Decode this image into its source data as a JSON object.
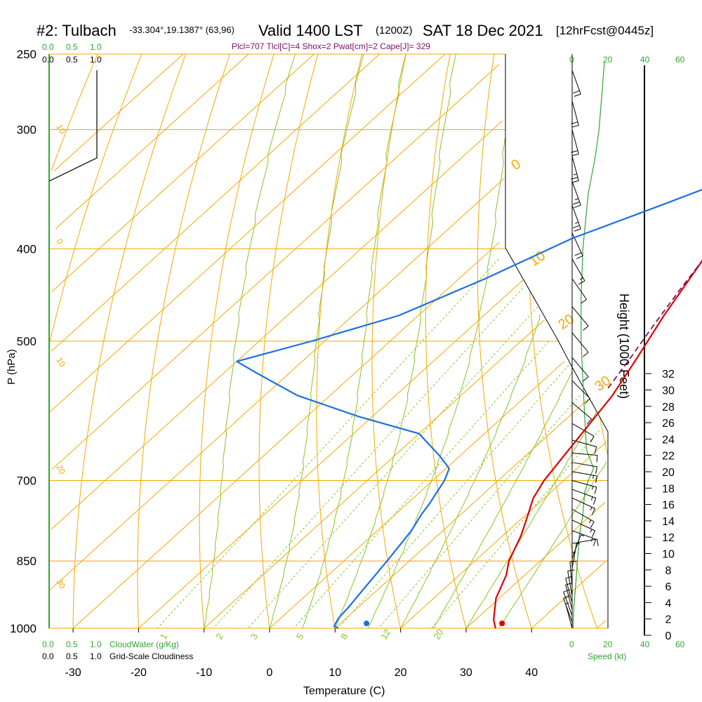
{
  "header": {
    "station": "#2: Tulbach",
    "coords": "-33.304°,19.1387° (63,96)",
    "valid": "Valid 1400 LST",
    "zulu": "(1200Z)",
    "date": "SAT 18 Dec 2021",
    "forecast": "[12hrFcst@0445z]",
    "params": "Plcl=707 Tlcl[C]=4 Shox=2 Pwat[cm]=2 Cape[J]= 329"
  },
  "colors": {
    "isobar": "#f2a900",
    "dry_adiabat": "#f2a900",
    "moist_adiabat": "#88c425",
    "mixing_ratio": "#88c425",
    "temperature": "#e00000",
    "dewpoint": "#1a6fe6",
    "parcel": "#7b1060",
    "cloud": "#2fa82f",
    "axis": "#000000"
  },
  "cloud_panel": {
    "cloudwater_ticks": [
      "0.0",
      "0.5",
      "1.0"
    ],
    "cloudiness_ticks": [
      "0.0",
      "0.5",
      "1.0"
    ],
    "cloudwater_label": "CloudWater (g/Kg)",
    "cloudiness_label": "Grid-Scale Cloudiness"
  },
  "speed_panel": {
    "ticks": [
      "0",
      "20",
      "40",
      "60"
    ],
    "label": "Speed (kt)"
  },
  "chart_data": {
    "type": "skew-t",
    "xlabel": "Temperature (C)",
    "ylabel": "P (hPa)",
    "y2label": "Height (1000 Feet)",
    "x_ticks": [
      "-30",
      "-20",
      "-10",
      "0",
      "10",
      "20",
      "30",
      "40"
    ],
    "x_tick_values": [
      -30,
      -20,
      -10,
      0,
      10,
      20,
      30,
      40
    ],
    "p_ticks": [
      "250",
      "300",
      "400",
      "500",
      "700",
      "850",
      "1000"
    ],
    "p_tick_values": [
      250,
      300,
      400,
      500,
      700,
      850,
      1000
    ],
    "height_ticks": [
      "0",
      "2",
      "4",
      "6",
      "8",
      "10",
      "12",
      "14",
      "16",
      "18",
      "20",
      "22",
      "24",
      "26",
      "28",
      "30",
      "32"
    ],
    "height_tick_values": [
      0,
      2,
      4,
      6,
      8,
      10,
      12,
      14,
      16,
      18,
      20,
      22,
      24,
      26,
      28,
      30,
      32
    ],
    "xlim": [
      -33,
      46
    ],
    "plim": [
      250,
      1000
    ],
    "dry_adiabat_labels": [
      "-10",
      "0",
      "10",
      "20",
      "30",
      "10",
      "0",
      "-10",
      "-20",
      "-30"
    ],
    "mixing_ratio_labels": [
      "1",
      "2",
      "3",
      "5",
      "8",
      "12",
      "20"
    ],
    "series": [
      {
        "name": "temperature",
        "points": [
          [
            34.5,
            1000
          ],
          [
            32.8,
            980
          ],
          [
            29.5,
            930
          ],
          [
            27.2,
            880
          ],
          [
            25.2,
            850
          ],
          [
            22.8,
            800
          ],
          [
            20.3,
            760
          ],
          [
            18.3,
            730
          ],
          [
            17.0,
            700
          ],
          [
            15.0,
            630
          ],
          [
            13.1,
            570
          ],
          [
            10.5,
            520
          ],
          [
            7.5,
            470
          ],
          [
            4.0,
            410
          ],
          [
            1.5,
            370
          ],
          [
            -0.8,
            330
          ],
          [
            -3.7,
            290
          ],
          [
            -6.6,
            260
          ]
        ]
      },
      {
        "name": "dewpoint",
        "points": [
          [
            10.5,
            1000
          ],
          [
            9.5,
            995
          ],
          [
            8.8,
            975
          ],
          [
            8.5,
            950
          ],
          [
            6.6,
            850
          ],
          [
            5.2,
            790
          ],
          [
            4.0,
            760
          ],
          [
            3.4,
            740
          ],
          [
            1.8,
            700
          ],
          [
            0.5,
            680
          ],
          [
            -3,
            660
          ],
          [
            -10,
            625
          ],
          [
            -22,
            600
          ],
          [
            -35,
            570
          ],
          [
            -45,
            540
          ],
          [
            -50,
            525
          ],
          [
            -42,
            500
          ],
          [
            -33,
            470
          ],
          [
            -26,
            430
          ],
          [
            -19.5,
            390
          ],
          [
            -11.5,
            360
          ],
          [
            -6,
            340
          ],
          [
            -7.5,
            320
          ],
          [
            -11.5,
            280
          ],
          [
            -14.3,
            255
          ]
        ]
      },
      {
        "name": "parcel",
        "points": [
          [
            11.2,
            560
          ],
          [
            9.5,
            520
          ],
          [
            7.5,
            480
          ],
          [
            5.5,
            440
          ],
          [
            3.5,
            400
          ],
          [
            1.5,
            360
          ],
          [
            -0.8,
            320
          ],
          [
            -3.5,
            280
          ],
          [
            -6.5,
            255
          ]
        ]
      },
      {
        "name": "cloud_water",
        "points": [
          [
            0.0,
            1000
          ],
          [
            0.0,
            400
          ]
        ]
      }
    ],
    "surface_temperature": 35.5,
    "surface_dewpoint": 14.8,
    "wind_speed_profile": [
      [
        0.5,
        1000
      ],
      [
        1,
        950
      ],
      [
        2,
        900
      ],
      [
        3,
        850
      ],
      [
        4,
        800
      ],
      [
        6,
        760
      ],
      [
        7,
        720
      ],
      [
        9,
        700
      ],
      [
        12,
        680
      ],
      [
        8,
        650
      ],
      [
        7,
        600
      ],
      [
        6,
        550
      ],
      [
        5,
        500
      ],
      [
        5,
        450
      ],
      [
        6,
        400
      ],
      [
        9,
        350
      ],
      [
        13,
        320
      ],
      [
        15,
        300
      ],
      [
        17,
        270
      ],
      [
        18,
        255
      ]
    ],
    "wind_barbs": [
      {
        "p": 1000,
        "dir": 165,
        "spd": 8
      },
      {
        "p": 985,
        "dir": 160,
        "spd": 10
      },
      {
        "p": 970,
        "dir": 160,
        "spd": 12
      },
      {
        "p": 955,
        "dir": 165,
        "spd": 12
      },
      {
        "p": 940,
        "dir": 165,
        "spd": 12
      },
      {
        "p": 925,
        "dir": 170,
        "spd": 10
      },
      {
        "p": 905,
        "dir": 175,
        "spd": 10
      },
      {
        "p": 885,
        "dir": 180,
        "spd": 8
      },
      {
        "p": 865,
        "dir": 190,
        "spd": 6
      },
      {
        "p": 845,
        "dir": 200,
        "spd": 5
      },
      {
        "p": 815,
        "dir": 260,
        "spd": 10
      },
      {
        "p": 790,
        "dir": 290,
        "spd": 15
      },
      {
        "p": 770,
        "dir": 295,
        "spd": 15
      },
      {
        "p": 750,
        "dir": 300,
        "spd": 15
      },
      {
        "p": 730,
        "dir": 295,
        "spd": 15
      },
      {
        "p": 715,
        "dir": 290,
        "spd": 15
      },
      {
        "p": 700,
        "dir": 285,
        "spd": 15
      },
      {
        "p": 685,
        "dir": 280,
        "spd": 15
      },
      {
        "p": 670,
        "dir": 280,
        "spd": 10
      },
      {
        "p": 655,
        "dir": 275,
        "spd": 10
      },
      {
        "p": 635,
        "dir": 285,
        "spd": 10
      },
      {
        "p": 610,
        "dir": 300,
        "spd": 10
      },
      {
        "p": 580,
        "dir": 310,
        "spd": 10
      },
      {
        "p": 550,
        "dir": 315,
        "spd": 10
      },
      {
        "p": 520,
        "dir": 320,
        "spd": 10
      },
      {
        "p": 490,
        "dir": 320,
        "spd": 10
      },
      {
        "p": 460,
        "dir": 320,
        "spd": 10
      },
      {
        "p": 430,
        "dir": 325,
        "spd": 10
      },
      {
        "p": 410,
        "dir": 330,
        "spd": 15
      },
      {
        "p": 385,
        "dir": 335,
        "spd": 20
      },
      {
        "p": 360,
        "dir": 340,
        "spd": 25
      },
      {
        "p": 340,
        "dir": 340,
        "spd": 25
      },
      {
        "p": 320,
        "dir": 345,
        "spd": 25
      },
      {
        "p": 300,
        "dir": 345,
        "spd": 20
      },
      {
        "p": 280,
        "dir": 345,
        "spd": 20
      },
      {
        "p": 260,
        "dir": 340,
        "spd": 20
      }
    ],
    "grid": true,
    "legend": "none"
  }
}
